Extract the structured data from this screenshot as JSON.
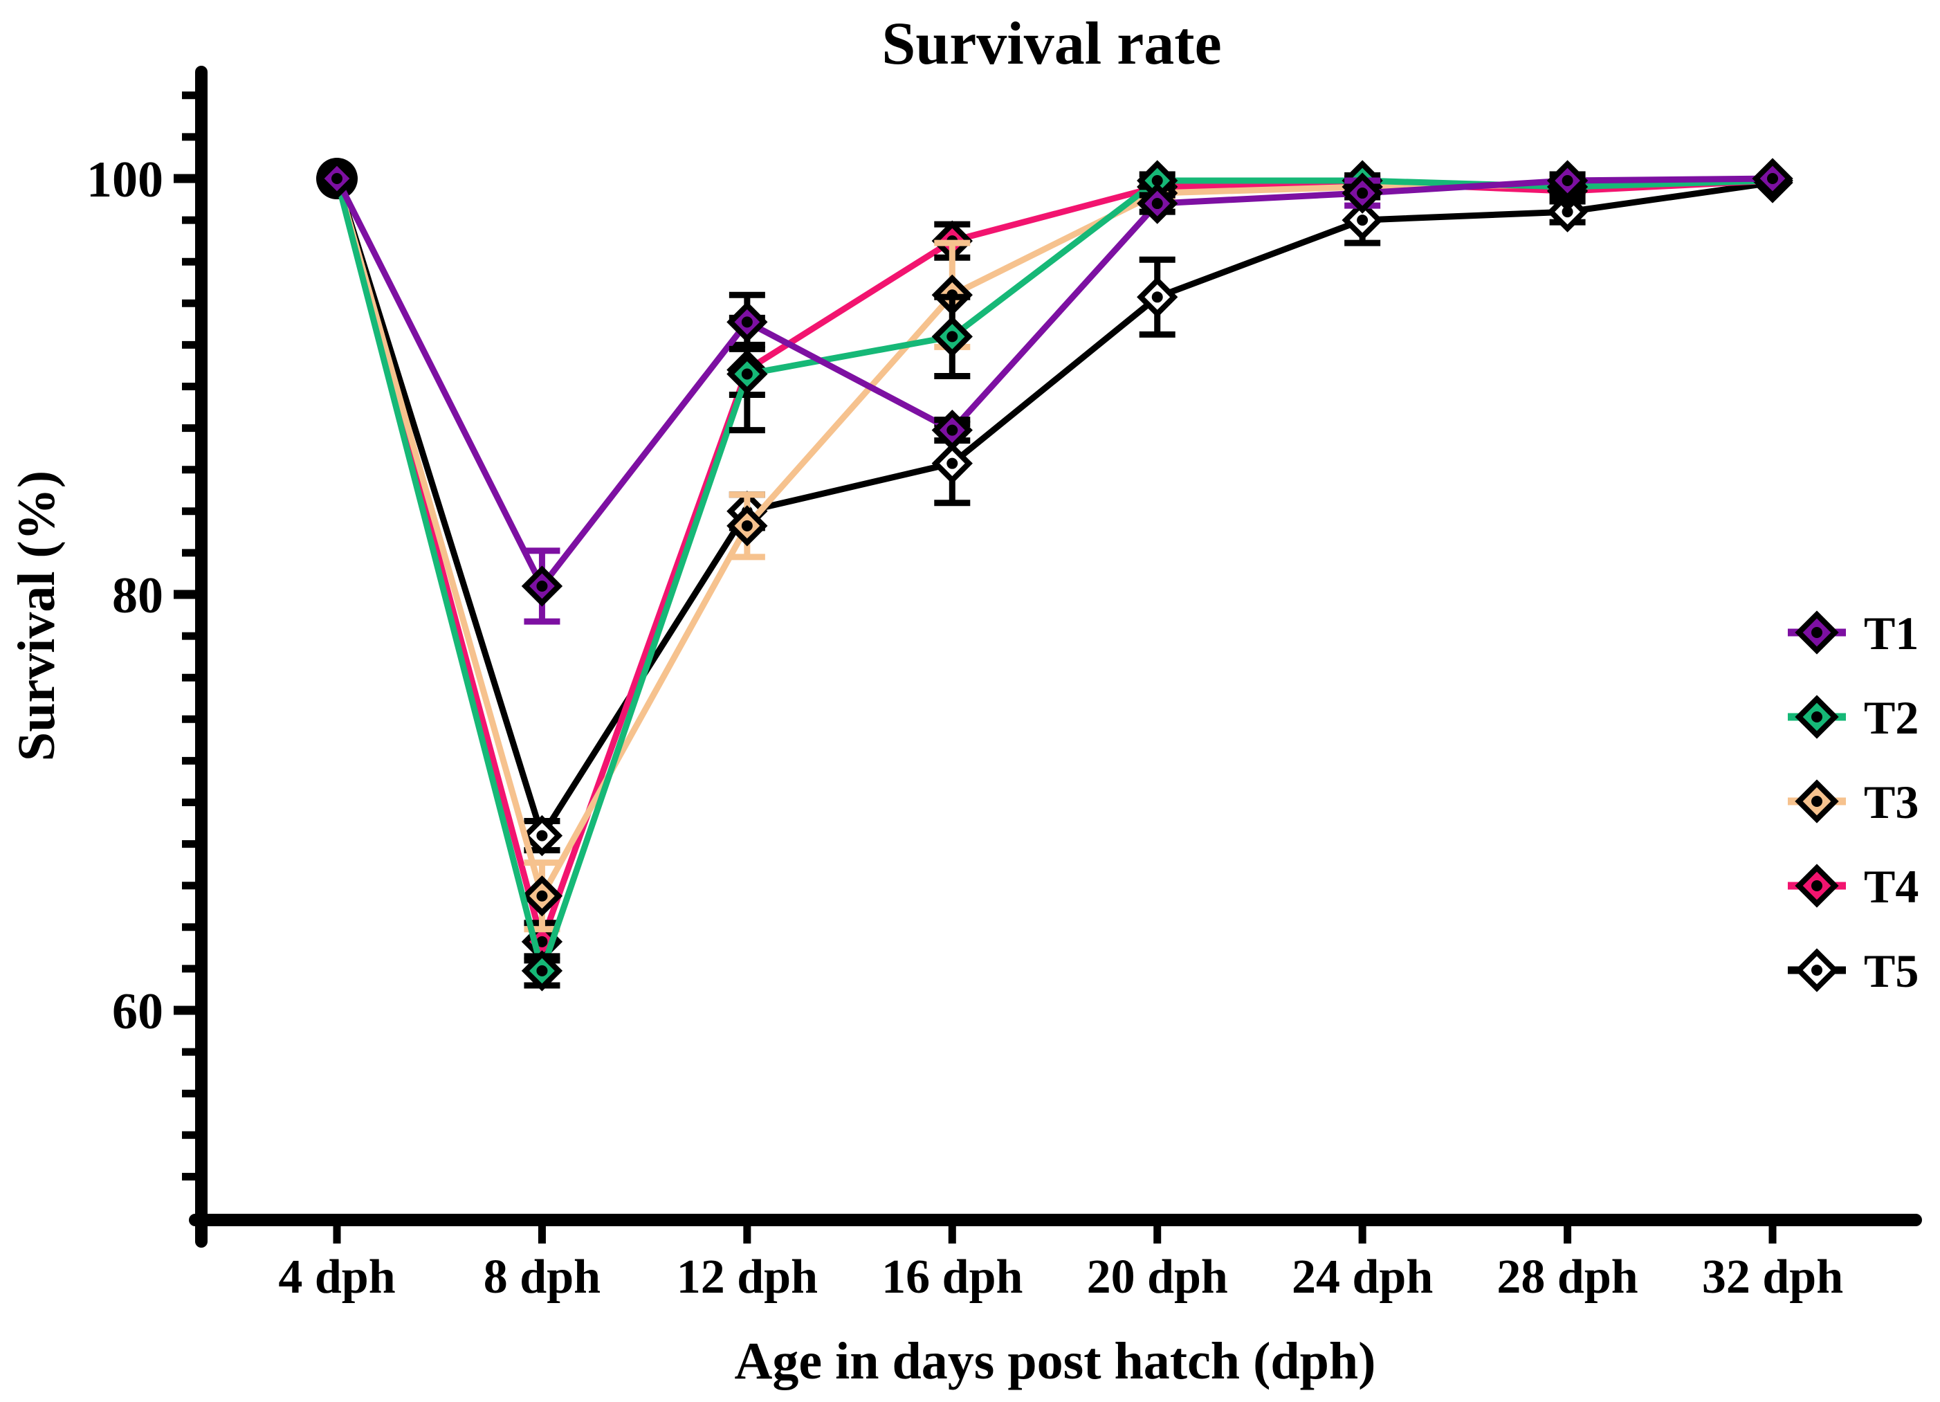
{
  "title": "Survival rate",
  "axes": {
    "x_label": "Age in days post hatch (dph)",
    "y_label": "Survival (%)"
  },
  "colors": {
    "axis": "#000000",
    "background": "#FFFFFF",
    "T1": "#7D10A2",
    "T2": "#16B877",
    "T3": "#F6C28E",
    "T4": "#F2146F",
    "T5": "#FFFFFF"
  },
  "chart_data": {
    "type": "line",
    "x": [
      4,
      8,
      12,
      16,
      20,
      24,
      28,
      32
    ],
    "x_tick_labels": [
      "4 dph",
      "8 dph",
      "12 dph",
      "16 dph",
      "20 dph",
      "24 dph",
      "28 dph",
      "32 dph"
    ],
    "xlabel": "Age in days post hatch (dph)",
    "ylabel": "Survival (%)",
    "ylim": [
      50,
      105
    ],
    "y_major_ticks": [
      60,
      80,
      100
    ],
    "y_tick_labels": [
      "60",
      "80",
      "100"
    ],
    "y_minor_step": 2,
    "grid": false,
    "legend_position": "right",
    "marker": "diamond-black-border-center-dot",
    "series": [
      {
        "name": "T1",
        "color": "#7D10A2",
        "values": [
          100,
          80.4,
          93.1,
          87.9,
          98.8,
          99.3,
          99.9,
          100
        ],
        "errors": [
          0,
          1.7,
          1.3,
          0.5,
          0.4,
          0.6,
          0.3,
          0
        ],
        "error_colors": [
          "#000000",
          "#7D10A2",
          "#000000",
          "#000000",
          "#000000",
          "#7D10A2",
          "#000000",
          "#000000"
        ]
      },
      {
        "name": "T2",
        "color": "#16B877",
        "values": [
          100,
          61.9,
          90.6,
          92.4,
          99.9,
          99.9,
          99.6,
          99.9
        ],
        "errors": [
          0,
          0.7,
          2.7,
          1.9,
          0.3,
          0.25,
          0.25,
          0
        ]
      },
      {
        "name": "T3",
        "color": "#F6C28E",
        "error_color": "#F6C28E",
        "values": [
          100,
          65.5,
          83.3,
          94.4,
          99.3,
          99.6,
          99.7,
          99.9
        ],
        "errors": [
          0,
          1.6,
          1.5,
          2.5,
          0.3,
          0.25,
          0.25,
          0
        ]
      },
      {
        "name": "T4",
        "color": "#F2146F",
        "values": [
          100,
          63.3,
          90.8,
          97.0,
          99.6,
          99.8,
          99.4,
          99.9
        ],
        "errors": [
          0,
          0.9,
          1.2,
          0.8,
          0.25,
          0.2,
          0.2,
          0
        ]
      },
      {
        "name": "T5",
        "color": "#FFFFFF",
        "values": [
          100,
          68.4,
          84.0,
          86.3,
          94.3,
          98.0,
          98.4,
          99.8
        ],
        "errors": [
          0,
          0.7,
          0.8,
          1.9,
          1.8,
          1.1,
          0.5,
          0
        ]
      }
    ],
    "draw_order": [
      "T5",
      "T4",
      "T3",
      "T2",
      "T1"
    ],
    "legend_order": [
      "T1",
      "T2",
      "T3",
      "T4",
      "T5"
    ]
  }
}
